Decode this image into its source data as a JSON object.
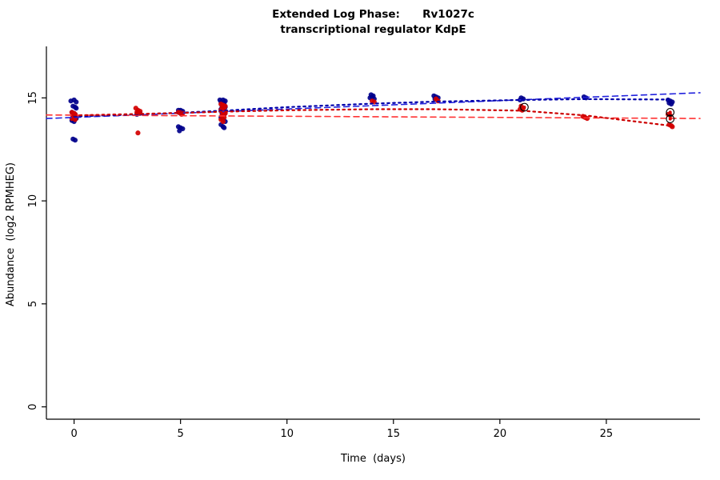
{
  "chart_data": {
    "type": "scatter",
    "title_line1": "Extended Log Phase:      Rv1027c",
    "title_line2": "transcriptional regulator KdpE",
    "xlabel": "Time  (days)",
    "ylabel": "Abundance  (log2 RPMHEG)",
    "xlim": [
      -1.3,
      29.4
    ],
    "ylim": [
      -0.6,
      17.5
    ],
    "xticks": [
      0,
      5,
      10,
      15,
      20,
      25
    ],
    "yticks": [
      0,
      5,
      10,
      15
    ],
    "grid": false,
    "legend": "none",
    "colors": {
      "series_blue": "#00008b",
      "series_red": "#d40000",
      "axis": "#000000"
    },
    "series": [
      {
        "name": "blue-replicates",
        "color": "#00008b",
        "points": [
          [
            -0.15,
            14.85
          ],
          [
            0.0,
            14.9
          ],
          [
            0.1,
            14.8
          ],
          [
            -0.05,
            14.6
          ],
          [
            0.05,
            14.55
          ],
          [
            0.1,
            14.5
          ],
          [
            -0.1,
            14.3
          ],
          [
            0.0,
            14.25
          ],
          [
            0.05,
            14.2
          ],
          [
            -0.05,
            14.1
          ],
          [
            0.0,
            14.05
          ],
          [
            0.1,
            14.0
          ],
          [
            -0.1,
            13.9
          ],
          [
            0.0,
            13.85
          ],
          [
            -0.05,
            13.0
          ],
          [
            0.05,
            12.95
          ],
          [
            3.0,
            14.3
          ],
          [
            3.1,
            14.25
          ],
          [
            2.95,
            14.2
          ],
          [
            4.9,
            14.4
          ],
          [
            5.0,
            14.4
          ],
          [
            5.1,
            14.35
          ],
          [
            4.95,
            14.3
          ],
          [
            5.05,
            14.3
          ],
          [
            5.0,
            14.25
          ],
          [
            4.9,
            13.6
          ],
          [
            5.0,
            13.55
          ],
          [
            5.1,
            13.5
          ],
          [
            4.95,
            13.4
          ],
          [
            6.85,
            14.9
          ],
          [
            7.0,
            14.9
          ],
          [
            7.1,
            14.85
          ],
          [
            6.9,
            14.8
          ],
          [
            7.05,
            14.75
          ],
          [
            6.95,
            14.6
          ],
          [
            7.1,
            14.55
          ],
          [
            6.9,
            14.45
          ],
          [
            7.0,
            14.4
          ],
          [
            7.1,
            14.35
          ],
          [
            6.95,
            14.25
          ],
          [
            7.05,
            14.2
          ],
          [
            6.9,
            14.05
          ],
          [
            7.0,
            13.95
          ],
          [
            7.1,
            13.85
          ],
          [
            6.9,
            13.7
          ],
          [
            7.0,
            13.6
          ],
          [
            7.05,
            13.55
          ],
          [
            13.95,
            15.15
          ],
          [
            14.05,
            15.1
          ],
          [
            14.0,
            15.05
          ],
          [
            13.9,
            15.0
          ],
          [
            14.1,
            14.95
          ],
          [
            16.9,
            15.1
          ],
          [
            17.0,
            15.05
          ],
          [
            17.1,
            15.0
          ],
          [
            16.95,
            14.95
          ],
          [
            17.05,
            14.9
          ],
          [
            21.0,
            15.0
          ],
          [
            21.1,
            14.95
          ],
          [
            20.95,
            14.9
          ],
          [
            23.95,
            15.05
          ],
          [
            24.05,
            15.0
          ],
          [
            27.9,
            14.9
          ],
          [
            28.0,
            14.85
          ],
          [
            28.1,
            14.8
          ],
          [
            27.95,
            14.75
          ],
          [
            28.05,
            14.7
          ]
        ]
      },
      {
        "name": "red-replicates",
        "color": "#d40000",
        "points": [
          [
            -0.1,
            14.3
          ],
          [
            0.0,
            14.25
          ],
          [
            0.05,
            14.2
          ],
          [
            -0.05,
            14.15
          ],
          [
            0.1,
            14.1
          ],
          [
            0.0,
            14.05
          ],
          [
            -0.1,
            14.0
          ],
          [
            0.05,
            13.95
          ],
          [
            2.9,
            14.5
          ],
          [
            3.0,
            14.4
          ],
          [
            3.1,
            14.35
          ],
          [
            2.95,
            14.3
          ],
          [
            3.05,
            14.25
          ],
          [
            3.0,
            13.3
          ],
          [
            4.9,
            14.3
          ],
          [
            5.0,
            14.28
          ],
          [
            5.1,
            14.25
          ],
          [
            5.05,
            14.2
          ],
          [
            6.9,
            14.7
          ],
          [
            7.0,
            14.65
          ],
          [
            7.1,
            14.6
          ],
          [
            6.95,
            14.5
          ],
          [
            7.05,
            14.45
          ],
          [
            6.9,
            14.4
          ],
          [
            7.0,
            14.3
          ],
          [
            7.1,
            14.25
          ],
          [
            6.95,
            14.15
          ],
          [
            7.05,
            14.05
          ],
          [
            6.9,
            13.95
          ],
          [
            7.0,
            13.85
          ],
          [
            14.0,
            14.85
          ],
          [
            14.1,
            14.8
          ],
          [
            17.0,
            14.95
          ],
          [
            17.1,
            14.85
          ],
          [
            21.0,
            14.6
          ],
          [
            21.1,
            14.5
          ],
          [
            20.95,
            14.45
          ],
          [
            21.05,
            14.4
          ],
          [
            23.9,
            14.1
          ],
          [
            24.0,
            14.05
          ],
          [
            24.1,
            14.0
          ],
          [
            27.9,
            14.2
          ],
          [
            28.0,
            14.15
          ],
          [
            27.95,
            13.7
          ],
          [
            28.05,
            13.65
          ],
          [
            28.1,
            13.6
          ]
        ]
      }
    ],
    "lines": [
      {
        "name": "blue-linear-fit-dashed",
        "color": "#2222dd",
        "dash": "7,5",
        "width": 1.6,
        "points": [
          [
            -1.3,
            14.0
          ],
          [
            29.4,
            15.25
          ]
        ]
      },
      {
        "name": "red-linear-fit-dashed",
        "color": "#ff3333",
        "dash": "7,5",
        "width": 1.6,
        "points": [
          [
            -1.3,
            14.17
          ],
          [
            29.4,
            14.0
          ]
        ]
      },
      {
        "name": "blue-smooth-fit-dotted",
        "color": "#0000aa",
        "dash": "2.5,4.5",
        "width": 2.2,
        "points": [
          [
            0,
            14.1
          ],
          [
            3,
            14.2
          ],
          [
            5,
            14.28
          ],
          [
            7,
            14.38
          ],
          [
            10,
            14.55
          ],
          [
            14,
            14.72
          ],
          [
            17,
            14.82
          ],
          [
            21,
            14.9
          ],
          [
            24,
            14.94
          ],
          [
            28,
            14.92
          ]
        ]
      },
      {
        "name": "red-smooth-fit-dotted",
        "color": "#cc0000",
        "dash": "2.5,4.5",
        "width": 2.2,
        "points": [
          [
            0,
            14.15
          ],
          [
            3,
            14.22
          ],
          [
            5,
            14.27
          ],
          [
            7,
            14.33
          ],
          [
            10,
            14.4
          ],
          [
            14,
            14.45
          ],
          [
            17,
            14.45
          ],
          [
            21,
            14.38
          ],
          [
            24,
            14.15
          ],
          [
            28,
            13.65
          ]
        ]
      }
    ],
    "highlights": [
      {
        "x": 21.15,
        "y": 14.55,
        "dot": "#d40000"
      },
      {
        "x": 28.0,
        "y": 14.3,
        "dot": "#d40000"
      },
      {
        "x": 28.0,
        "y": 13.98,
        "dot": "#d40000"
      }
    ]
  }
}
